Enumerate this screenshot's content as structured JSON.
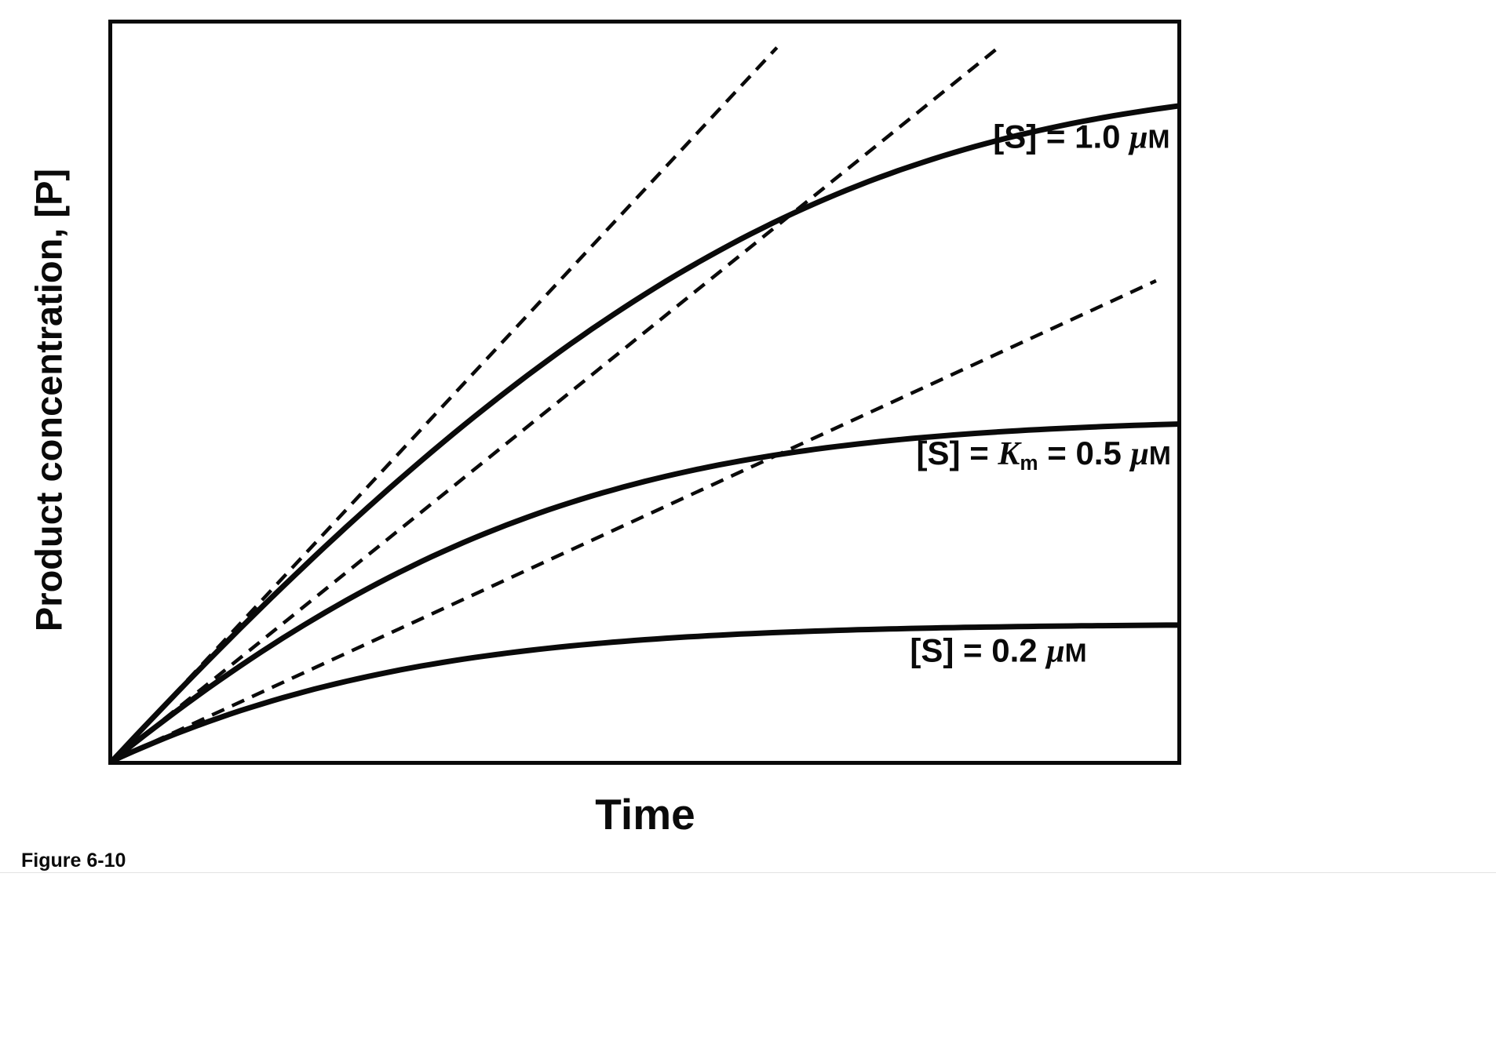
{
  "figure": {
    "caption": "Figure 6-10"
  },
  "chart_data": {
    "type": "line",
    "title": "",
    "xlabel": "Time",
    "ylabel": "Product concentration, [P]",
    "x_range_t": [
      0,
      1
    ],
    "y_axis_max_uM": 1.075,
    "axes": {
      "ticks": false,
      "grid": false,
      "frame": true
    },
    "legend_position": "inline-labels",
    "model": "Michaelis-Menten progress curve: dP/dt = Vmax*(S0-P)/(Km+S0-P); dashed lines are initial-velocity tangents at the origin",
    "km_uM": 0.5,
    "vmax_uM_per_t": 2.5,
    "tangent_clip_uM": 1.04,
    "tangent_max_t": 0.98,
    "series": [
      {
        "id": "s1-0uM",
        "name": "[S] = 1.0 uM",
        "s0_uM": 1.0,
        "v0_uM_per_t": 1.67,
        "plateau_uM": 1.0,
        "approx_points_t": [
          0,
          0.1,
          0.2,
          0.3,
          0.4,
          0.5,
          0.6,
          0.7,
          0.8,
          0.9,
          1.0
        ],
        "approx_points_P_uM": [
          0,
          0.16,
          0.32,
          0.46,
          0.59,
          0.7,
          0.79,
          0.86,
          0.91,
          0.945,
          0.965
        ],
        "label": {
          "x": 0.993,
          "y": 0.154,
          "anchor": "end",
          "segments": [
            {
              "text": "[S] = 1.0 "
            },
            {
              "text": "μ",
              "italic": true
            },
            {
              "text": "M",
              "small": true
            }
          ]
        }
      },
      {
        "id": "s0-5uM",
        "name": "[S] = Km = 0.5 uM",
        "s0_uM": 0.5,
        "v0_uM_per_t": 1.25,
        "plateau_uM": 0.5,
        "approx_points_t": [
          0,
          0.1,
          0.2,
          0.3,
          0.4,
          0.5,
          0.6,
          0.7,
          0.8,
          0.9,
          1.0
        ],
        "approx_points_P_uM": [
          0,
          0.12,
          0.225,
          0.31,
          0.375,
          0.42,
          0.455,
          0.475,
          0.487,
          0.493,
          0.497
        ],
        "label": {
          "x": 0.994,
          "y": 0.585,
          "anchor": "end",
          "segments": [
            {
              "text": "[S] = "
            },
            {
              "text": "K",
              "italic": true
            },
            {
              "text": "m",
              "sub": true
            },
            {
              "text": " = 0.5 "
            },
            {
              "text": "μ",
              "italic": true
            },
            {
              "text": "M",
              "small": true
            }
          ]
        }
      },
      {
        "id": "s0-2uM",
        "name": "[S] = 0.2 uM",
        "s0_uM": 0.2,
        "v0_uM_per_t": 0.71,
        "plateau_uM": 0.2,
        "approx_points_t": [
          0,
          0.1,
          0.2,
          0.3,
          0.4,
          0.5,
          0.6,
          0.7,
          0.8,
          0.9,
          1.0
        ],
        "approx_points_P_uM": [
          0,
          0.068,
          0.119,
          0.152,
          0.172,
          0.184,
          0.191,
          0.196,
          0.198,
          0.199,
          0.2
        ],
        "label": {
          "x": 0.915,
          "y": 0.851,
          "anchor": "end",
          "segments": [
            {
              "text": "[S] = 0.2 "
            },
            {
              "text": "μ",
              "italic": true
            },
            {
              "text": "M",
              "small": true
            }
          ]
        }
      }
    ],
    "style": {
      "curve_color": "#0a0a0a",
      "curve_width": 7,
      "tangent_width": 4.5,
      "tangent_dash": "17 11"
    }
  }
}
